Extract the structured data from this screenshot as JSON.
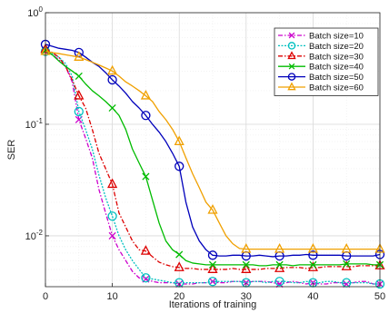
{
  "chart_data": {
    "type": "line",
    "title": "",
    "xlabel": "Iterations of training",
    "ylabel": "SER",
    "xlim": [
      0,
      50
    ],
    "ylim": [
      0.0035,
      1
    ],
    "yscale": "log",
    "grid": true,
    "minor_grid": true,
    "legend_position": "top-right",
    "x_ticks": [
      "0",
      "10",
      "20",
      "30",
      "40",
      "50"
    ],
    "y_ticks": [
      {
        "base": "10",
        "exp": "0"
      },
      {
        "base": "10",
        "exp": "-1"
      },
      {
        "base": "10",
        "exp": "-2"
      }
    ],
    "series": [
      {
        "name": "Batch size=10",
        "color": "#cc00cc",
        "marker": "x",
        "dash": "5,2,1.5,2",
        "x": [
          0,
          1,
          2,
          3,
          4,
          5,
          6,
          7,
          8,
          9,
          10,
          11,
          12,
          13,
          14,
          15,
          16,
          17,
          18,
          19,
          20,
          21,
          22,
          23,
          24,
          25,
          26,
          27,
          28,
          29,
          30,
          31,
          32,
          33,
          34,
          35,
          36,
          37,
          38,
          39,
          40,
          41,
          42,
          43,
          44,
          45,
          46,
          47,
          48,
          49,
          50
        ],
        "y": [
          0.44,
          0.42,
          0.38,
          0.33,
          0.24,
          0.11,
          0.075,
          0.05,
          0.026,
          0.016,
          0.01,
          0.0075,
          0.006,
          0.0048,
          0.0042,
          0.0041,
          0.0039,
          0.0038,
          0.0038,
          0.0038,
          0.0037,
          0.0037,
          0.0037,
          0.0038,
          0.0038,
          0.0039,
          0.0038,
          0.0038,
          0.0039,
          0.0039,
          0.0038,
          0.0039,
          0.0039,
          0.0039,
          0.0038,
          0.0037,
          0.0038,
          0.0039,
          0.0038,
          0.0037,
          0.0038,
          0.0037,
          0.0037,
          0.0038,
          0.0038,
          0.0037,
          0.0038,
          0.0039,
          0.0039,
          0.0037,
          0.0037
        ],
        "marker_x": [
          5,
          10,
          15,
          20,
          25,
          30,
          35,
          40,
          45,
          50
        ]
      },
      {
        "name": "Batch size=20",
        "color": "#00c0c0",
        "marker": "o",
        "dash": "2,1.5",
        "x": [
          0,
          1,
          2,
          3,
          4,
          5,
          6,
          7,
          8,
          9,
          10,
          11,
          12,
          13,
          14,
          15,
          16,
          17,
          18,
          19,
          20,
          21,
          22,
          23,
          24,
          25,
          26,
          27,
          28,
          29,
          30,
          31,
          32,
          33,
          34,
          35,
          36,
          37,
          38,
          39,
          40,
          41,
          42,
          43,
          44,
          45,
          46,
          47,
          48,
          49,
          50
        ],
        "y": [
          0.45,
          0.43,
          0.4,
          0.35,
          0.27,
          0.13,
          0.09,
          0.06,
          0.035,
          0.022,
          0.015,
          0.01,
          0.0075,
          0.006,
          0.005,
          0.0042,
          0.0041,
          0.004,
          0.0039,
          0.0038,
          0.0038,
          0.0038,
          0.0038,
          0.0038,
          0.0038,
          0.0039,
          0.0039,
          0.0039,
          0.0039,
          0.0039,
          0.0038,
          0.0039,
          0.0039,
          0.0038,
          0.0039,
          0.0039,
          0.0039,
          0.0038,
          0.0038,
          0.0039,
          0.0038,
          0.0038,
          0.0039,
          0.0039,
          0.0038,
          0.0038,
          0.0038,
          0.0038,
          0.0038,
          0.0037,
          0.0037
        ],
        "marker_x": [
          0,
          5,
          10,
          15,
          20,
          25,
          30,
          35,
          40,
          45,
          50
        ]
      },
      {
        "name": "Batch size=30",
        "color": "#dd0000",
        "marker": "^",
        "dash": "5,2,1.5,2",
        "x": [
          0,
          1,
          2,
          3,
          4,
          5,
          6,
          7,
          8,
          9,
          10,
          11,
          12,
          13,
          14,
          15,
          16,
          17,
          18,
          19,
          20,
          21,
          22,
          23,
          24,
          25,
          26,
          27,
          28,
          29,
          30,
          31,
          32,
          33,
          34,
          35,
          36,
          37,
          38,
          39,
          40,
          41,
          42,
          43,
          44,
          45,
          46,
          47,
          48,
          49,
          50
        ],
        "y": [
          0.47,
          0.44,
          0.4,
          0.33,
          0.25,
          0.18,
          0.14,
          0.09,
          0.055,
          0.04,
          0.029,
          0.016,
          0.012,
          0.009,
          0.0075,
          0.0073,
          0.0065,
          0.0058,
          0.0055,
          0.0053,
          0.0052,
          0.0051,
          0.0051,
          0.005,
          0.005,
          0.005,
          0.005,
          0.005,
          0.0051,
          0.005,
          0.005,
          0.005,
          0.005,
          0.0051,
          0.0051,
          0.0051,
          0.0052,
          0.0052,
          0.0052,
          0.0051,
          0.0052,
          0.0052,
          0.0053,
          0.0053,
          0.0053,
          0.0053,
          0.0053,
          0.0054,
          0.0054,
          0.0054,
          0.0054
        ],
        "marker_x": [
          0,
          5,
          10,
          15,
          20,
          25,
          30,
          35,
          40,
          45,
          50
        ]
      },
      {
        "name": "Batch size=40",
        "color": "#00bb00",
        "marker": "x",
        "dash": "",
        "x": [
          0,
          1,
          2,
          3,
          4,
          5,
          6,
          7,
          8,
          9,
          10,
          11,
          12,
          13,
          14,
          15,
          16,
          17,
          18,
          19,
          20,
          21,
          22,
          23,
          24,
          25,
          26,
          27,
          28,
          29,
          30,
          31,
          32,
          33,
          34,
          35,
          36,
          37,
          38,
          39,
          40,
          41,
          42,
          43,
          44,
          45,
          46,
          47,
          48,
          49,
          50
        ],
        "y": [
          0.46,
          0.42,
          0.37,
          0.33,
          0.3,
          0.27,
          0.23,
          0.2,
          0.18,
          0.16,
          0.14,
          0.12,
          0.09,
          0.06,
          0.045,
          0.034,
          0.021,
          0.013,
          0.009,
          0.0075,
          0.0068,
          0.006,
          0.0057,
          0.0056,
          0.0055,
          0.0055,
          0.0055,
          0.0055,
          0.0055,
          0.0055,
          0.0055,
          0.0055,
          0.0054,
          0.0054,
          0.0055,
          0.0055,
          0.0055,
          0.0054,
          0.0055,
          0.0055,
          0.0055,
          0.0055,
          0.0055,
          0.0055,
          0.0055,
          0.0056,
          0.0056,
          0.0056,
          0.0056,
          0.0055,
          0.0055
        ],
        "marker_x": [
          0,
          5,
          10,
          15,
          20,
          25,
          30,
          35,
          40,
          45,
          50
        ]
      },
      {
        "name": "Batch size=50",
        "color": "#0000bb",
        "marker": "o",
        "dash": "",
        "x": [
          0,
          1,
          2,
          3,
          4,
          5,
          6,
          7,
          8,
          9,
          10,
          11,
          12,
          13,
          14,
          15,
          16,
          17,
          18,
          19,
          20,
          21,
          22,
          23,
          24,
          25,
          26,
          27,
          28,
          29,
          30,
          31,
          32,
          33,
          34,
          35,
          36,
          37,
          38,
          39,
          40,
          41,
          42,
          43,
          44,
          45,
          46,
          47,
          48,
          49,
          50
        ],
        "y": [
          0.52,
          0.5,
          0.48,
          0.47,
          0.46,
          0.44,
          0.4,
          0.36,
          0.33,
          0.29,
          0.25,
          0.22,
          0.19,
          0.16,
          0.14,
          0.12,
          0.1,
          0.085,
          0.07,
          0.055,
          0.042,
          0.02,
          0.012,
          0.009,
          0.0075,
          0.0067,
          0.0066,
          0.0066,
          0.0067,
          0.0067,
          0.0066,
          0.0066,
          0.0067,
          0.0066,
          0.0065,
          0.0066,
          0.0066,
          0.0067,
          0.0067,
          0.0068,
          0.0067,
          0.0067,
          0.0067,
          0.0067,
          0.0067,
          0.0066,
          0.0066,
          0.0066,
          0.0066,
          0.0066,
          0.0068
        ],
        "marker_x": [
          0,
          5,
          10,
          15,
          20,
          25,
          30,
          35,
          40,
          45,
          50
        ]
      },
      {
        "name": "Batch size=60",
        "color": "#f0a000",
        "marker": "^",
        "dash": "",
        "x": [
          0,
          1,
          2,
          3,
          4,
          5,
          6,
          7,
          8,
          9,
          10,
          11,
          12,
          13,
          14,
          15,
          16,
          17,
          18,
          19,
          20,
          21,
          22,
          23,
          24,
          25,
          26,
          27,
          28,
          29,
          30,
          31,
          32,
          33,
          34,
          35,
          36,
          37,
          38,
          39,
          40,
          41,
          42,
          43,
          44,
          45,
          46,
          47,
          48,
          49,
          50
        ],
        "y": [
          0.45,
          0.44,
          0.43,
          0.42,
          0.41,
          0.4,
          0.38,
          0.36,
          0.34,
          0.32,
          0.3,
          0.27,
          0.24,
          0.22,
          0.2,
          0.18,
          0.16,
          0.13,
          0.11,
          0.09,
          0.07,
          0.05,
          0.036,
          0.027,
          0.02,
          0.017,
          0.013,
          0.01,
          0.0085,
          0.0077,
          0.0076,
          0.0076,
          0.0076,
          0.0076,
          0.0076,
          0.0076,
          0.0076,
          0.0076,
          0.0076,
          0.0076,
          0.0076,
          0.0076,
          0.0076,
          0.0076,
          0.0076,
          0.0076,
          0.0076,
          0.0076,
          0.0076,
          0.0076,
          0.0076
        ],
        "marker_x": [
          0,
          5,
          10,
          15,
          20,
          25,
          30,
          35,
          40,
          45,
          50
        ]
      }
    ]
  }
}
